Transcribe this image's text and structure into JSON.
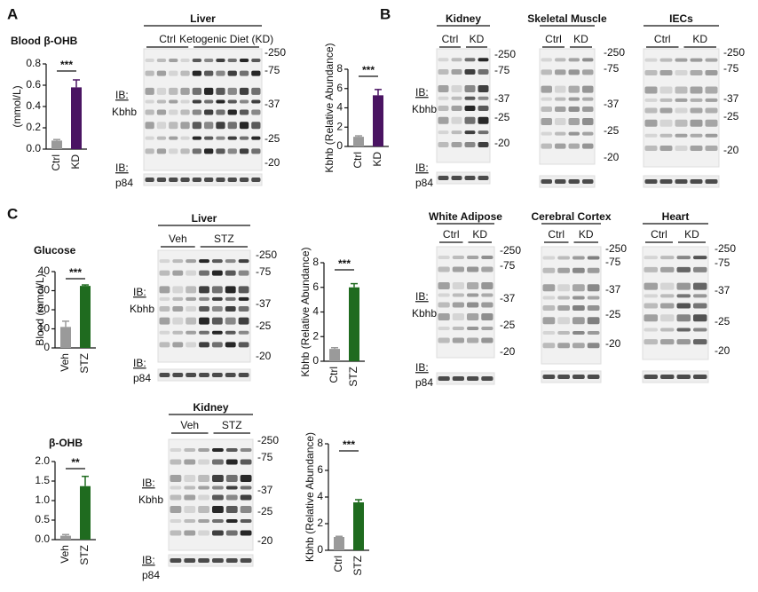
{
  "figure": {
    "panel_labels": [
      "A",
      "B",
      "C"
    ],
    "charts": [
      {
        "title": "Blood β-OHB",
        "ylabel": "(mmol/L)",
        "categories": [
          "Ctrl",
          "KD"
        ],
        "values": [
          0.08,
          0.58
        ],
        "errors": [
          0.01,
          0.07
        ],
        "colors": [
          "#9a9a9a",
          "#4a1462"
        ],
        "ylim": [
          0,
          0.8
        ],
        "yticks": [
          {
            "value": 0,
            "label": "0.0"
          },
          0.2,
          0.4,
          0.6,
          0.8
        ],
        "significance": "***"
      },
      {
        "ylabel": "Kbhb (Relative Abundance)",
        "categories": [
          "Ctrl",
          "KD"
        ],
        "values": [
          1.0,
          5.3
        ],
        "errors": [
          0.1,
          0.6
        ],
        "colors": [
          "#9a9a9a",
          "#4a1462"
        ],
        "ylim": [
          0,
          8
        ],
        "yticks": [
          0,
          2,
          4,
          6,
          8
        ],
        "significance": "***"
      },
      {
        "title": "Glucose",
        "ylabel": "Blood (mmol/L)",
        "categories": [
          "Veh",
          "STZ"
        ],
        "values": [
          11,
          32.5
        ],
        "errors": [
          3,
          0.5
        ],
        "colors": [
          "#9a9a9a",
          "#1f6b1f"
        ],
        "ylim": [
          0,
          40
        ],
        "yticks": [
          0,
          10,
          20,
          30,
          40
        ],
        "significance": "***"
      },
      {
        "ylabel": "Kbhb (Relative Abundance)",
        "categories": [
          "Ctrl",
          "STZ"
        ],
        "values": [
          1.0,
          6.0
        ],
        "errors": [
          0.1,
          0.3
        ],
        "colors": [
          "#9a9a9a",
          "#1f6b1f"
        ],
        "ylim": [
          0,
          8
        ],
        "yticks": [
          0,
          2,
          4,
          6,
          8
        ],
        "significance": "***"
      },
      {
        "title": "β-OHB",
        "categories": [
          "Veh",
          "STZ"
        ],
        "values": [
          0.1,
          1.37
        ],
        "errors": [
          0.03,
          0.25
        ],
        "colors": [
          "#9a9a9a",
          "#1f6b1f"
        ],
        "ylim": [
          0,
          2.0
        ],
        "yticks": [
          {
            "value": 0,
            "label": "0.0"
          },
          0.5,
          {
            "value": 1,
            "label": "1.0"
          },
          1.5,
          {
            "value": 2,
            "label": "2.0"
          }
        ],
        "significance": "**"
      },
      {
        "ylabel": "Kbhb (Relative Abundance)",
        "categories": [
          "Ctrl",
          "STZ"
        ],
        "values": [
          1.0,
          3.6
        ],
        "errors": [
          0.05,
          0.2
        ],
        "colors": [
          "#9a9a9a",
          "#1f6b1f"
        ],
        "ylim": [
          0,
          8
        ],
        "yticks": [
          0,
          2,
          4,
          6,
          8
        ],
        "significance": "***"
      }
    ],
    "blots": [
      {
        "title": "Liver",
        "groups": [
          "Ctrl",
          "Ketogenic Diet (KD)"
        ],
        "ib": "IB:",
        "target": "Kbhb",
        "loading": "p84",
        "markers": [
          "-250",
          "-75",
          "-37",
          "-25",
          "-20"
        ]
      },
      {
        "title": "Kidney",
        "groups": [
          "Ctrl",
          "KD"
        ],
        "ib": "IB:",
        "target": "Kbhb",
        "loading": "p84",
        "markers": [
          "-250",
          "-75",
          "-37",
          "-25",
          "-20"
        ]
      },
      {
        "title": "Skeletal Muscle",
        "groups": [
          "Ctrl",
          "KD"
        ],
        "markers": [
          "-250",
          "-75",
          "-37",
          "-25",
          "-20"
        ]
      },
      {
        "title": "IECs",
        "groups": [
          "Ctrl",
          "KD"
        ],
        "markers": [
          "-250",
          "-75",
          "-37",
          "-25",
          "-20"
        ]
      },
      {
        "title": "White Adipose",
        "groups": [
          "Ctrl",
          "KD"
        ],
        "ib": "IB:",
        "target": "Kbhb",
        "loading": "p84",
        "markers": [
          "-250",
          "-75",
          "-37",
          "-25",
          "-20"
        ]
      },
      {
        "title": "Cerebral Cortex",
        "groups": [
          "Ctrl",
          "KD"
        ],
        "markers": [
          "-250",
          "-75",
          "-37",
          "-25",
          "-20"
        ]
      },
      {
        "title": "Heart",
        "groups": [
          "Ctrl",
          "KD"
        ],
        "markers": [
          "-250",
          "-75",
          "-37",
          "-25",
          "-20"
        ]
      },
      {
        "title": "Liver",
        "groups": [
          "Veh",
          "STZ"
        ],
        "ib": "IB:",
        "target": "Kbhb",
        "loading": "p84",
        "markers": [
          "-250",
          "-75",
          "-37",
          "-25",
          "-20"
        ]
      },
      {
        "title": "Kidney",
        "groups": [
          "Veh",
          "STZ"
        ],
        "ib": "IB:",
        "target": "Kbhb",
        "loading": "p84",
        "markers": [
          "-250",
          "-75",
          "-37",
          "-25",
          "-20"
        ]
      }
    ]
  }
}
